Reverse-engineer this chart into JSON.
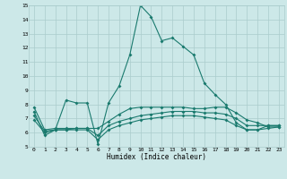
{
  "xlabel": "Humidex (Indice chaleur)",
  "background_color": "#cce8e8",
  "grid_color": "#aacccc",
  "line_color": "#1a7a6e",
  "xlim": [
    -0.5,
    23.5
  ],
  "ylim": [
    5,
    15
  ],
  "line1_x": [
    0,
    1,
    2,
    3,
    4,
    5,
    6,
    7,
    8,
    9,
    10,
    11,
    12,
    13,
    14,
    15,
    16,
    17,
    18,
    19,
    20,
    21,
    22,
    23
  ],
  "line1_y": [
    7.5,
    5.8,
    6.2,
    8.3,
    8.1,
    8.1,
    5.2,
    8.1,
    9.3,
    11.5,
    15.0,
    14.2,
    12.5,
    12.7,
    12.1,
    11.5,
    9.5,
    8.7,
    8.0,
    6.7,
    6.2,
    6.2,
    6.5,
    6.5
  ],
  "line2_x": [
    0,
    1,
    2,
    3,
    4,
    5,
    6,
    7,
    8,
    9,
    10,
    11,
    12,
    13,
    14,
    15,
    16,
    17,
    18,
    19,
    20,
    21,
    22,
    23
  ],
  "line2_y": [
    7.8,
    6.2,
    6.3,
    6.3,
    6.3,
    6.3,
    6.3,
    6.8,
    7.3,
    7.7,
    7.8,
    7.8,
    7.8,
    7.8,
    7.8,
    7.7,
    7.7,
    7.8,
    7.8,
    7.4,
    6.9,
    6.7,
    6.4,
    6.4
  ],
  "line3_x": [
    0,
    1,
    2,
    3,
    4,
    5,
    6,
    7,
    8,
    9,
    10,
    11,
    12,
    13,
    14,
    15,
    16,
    17,
    18,
    19,
    20,
    21,
    22,
    23
  ],
  "line3_y": [
    6.9,
    6.0,
    6.2,
    6.2,
    6.3,
    6.3,
    5.8,
    6.5,
    6.8,
    7.0,
    7.2,
    7.3,
    7.4,
    7.5,
    7.5,
    7.5,
    7.4,
    7.4,
    7.3,
    7.0,
    6.5,
    6.5,
    6.5,
    6.5
  ],
  "line4_x": [
    0,
    1,
    2,
    3,
    4,
    5,
    6,
    7,
    8,
    9,
    10,
    11,
    12,
    13,
    14,
    15,
    16,
    17,
    18,
    19,
    20,
    21,
    22,
    23
  ],
  "line4_y": [
    7.2,
    6.1,
    6.2,
    6.2,
    6.2,
    6.2,
    5.5,
    6.2,
    6.5,
    6.7,
    6.9,
    7.0,
    7.1,
    7.2,
    7.2,
    7.2,
    7.1,
    7.0,
    6.9,
    6.5,
    6.2,
    6.2,
    6.3,
    6.4
  ]
}
